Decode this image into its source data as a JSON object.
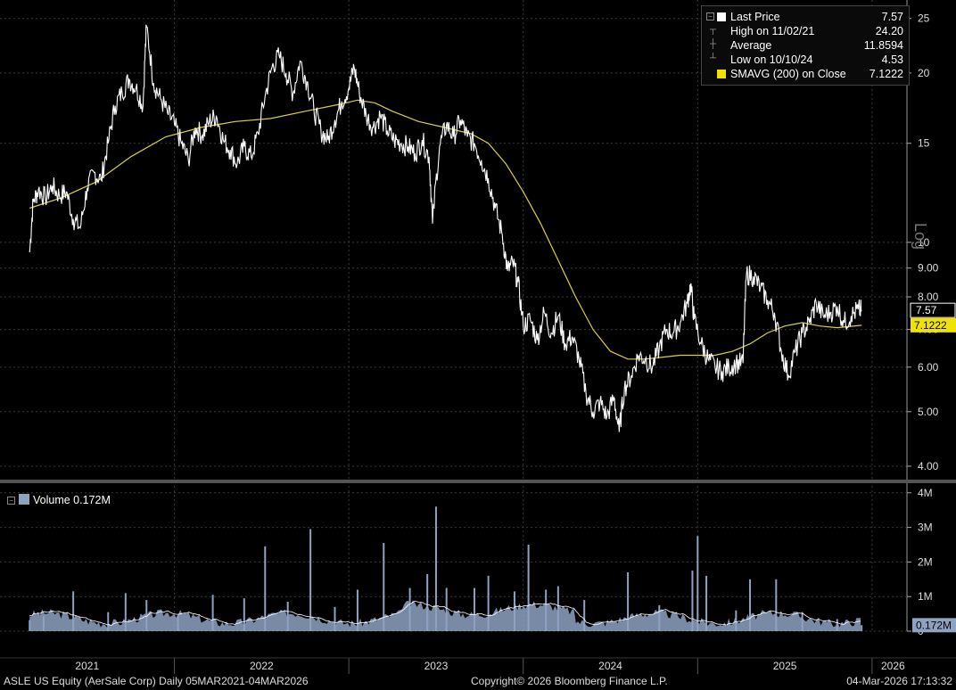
{
  "legend": {
    "last_price_label": "Last Price",
    "last_price_value": "7.57",
    "high_label": "High on 11/02/21",
    "high_value": "24.20",
    "average_label": "Average",
    "average_value": "11.8594",
    "low_label": "Low on 10/10/24",
    "low_value": "4.53",
    "sma_label": "SMAVG (200)  on Close",
    "sma_value": "7.1222"
  },
  "volume_legend": {
    "label": "Volume 0.172M"
  },
  "axis_tag": "Log",
  "price_tags": {
    "last": "7.57",
    "sma": "7.1222",
    "volume": "0.172M"
  },
  "footer": {
    "left": "ASLE US Equity (AerSale Corp) Daily 05MAR2021-04MAR2026",
    "center": "Copyright© 2026 Bloomberg Finance L.P.",
    "right": "04-Mar-2026 17:13:32"
  },
  "colors": {
    "price": "#ffffff",
    "sma": "#d8d23a",
    "volume": "#8ea2c2",
    "volume_avg": "#ffffff",
    "grid": "#3a3a3a"
  },
  "chart_data": [
    {
      "type": "line",
      "scale": "log",
      "ylim": [
        3.8,
        26
      ],
      "xlim": [
        2021.0,
        2026.2
      ],
      "xticks": [
        "2021",
        "2022",
        "2023",
        "2024",
        "2025",
        "2026"
      ],
      "yticks": [
        "4.00",
        "5.00",
        "6.00",
        "7.00",
        "8.00",
        "9.00",
        "10",
        "15",
        "20",
        "25"
      ],
      "grid": true,
      "legend_placement": "top-right",
      "series": [
        {
          "name": "Last Price",
          "points": [
            [
              2021.17,
              9.6
            ],
            [
              2021.19,
              11.8
            ],
            [
              2021.22,
              12.4
            ],
            [
              2021.26,
              12.0
            ],
            [
              2021.3,
              12.6
            ],
            [
              2021.34,
              12.1
            ],
            [
              2021.38,
              12.3
            ],
            [
              2021.42,
              11.0
            ],
            [
              2021.46,
              10.6
            ],
            [
              2021.5,
              12.5
            ],
            [
              2021.54,
              13.3
            ],
            [
              2021.58,
              12.9
            ],
            [
              2021.62,
              15.0
            ],
            [
              2021.66,
              17.5
            ],
            [
              2021.7,
              18.5
            ],
            [
              2021.74,
              19.5
            ],
            [
              2021.78,
              18.8
            ],
            [
              2021.82,
              17.5
            ],
            [
              2021.84,
              24.2
            ],
            [
              2021.88,
              19.2
            ],
            [
              2021.92,
              18.0
            ],
            [
              2021.96,
              17.0
            ],
            [
              2022.0,
              16.2
            ],
            [
              2022.04,
              15.0
            ],
            [
              2022.08,
              14.0
            ],
            [
              2022.12,
              16.0
            ],
            [
              2022.16,
              15.5
            ],
            [
              2022.2,
              16.4
            ],
            [
              2022.24,
              16.8
            ],
            [
              2022.28,
              15.2
            ],
            [
              2022.32,
              14.6
            ],
            [
              2022.36,
              13.8
            ],
            [
              2022.4,
              14.8
            ],
            [
              2022.44,
              14.2
            ],
            [
              2022.48,
              15.6
            ],
            [
              2022.52,
              18.2
            ],
            [
              2022.56,
              20.5
            ],
            [
              2022.6,
              21.5
            ],
            [
              2022.64,
              20.0
            ],
            [
              2022.68,
              18.4
            ],
            [
              2022.72,
              21.0
            ],
            [
              2022.76,
              19.3
            ],
            [
              2022.8,
              17.2
            ],
            [
              2022.84,
              15.8
            ],
            [
              2022.88,
              15.2
            ],
            [
              2022.92,
              16.5
            ],
            [
              2022.96,
              17.8
            ],
            [
              2023.0,
              18.8
            ],
            [
              2023.03,
              20.5
            ],
            [
              2023.06,
              18.5
            ],
            [
              2023.1,
              16.8
            ],
            [
              2023.14,
              16.0
            ],
            [
              2023.18,
              16.8
            ],
            [
              2023.22,
              15.8
            ],
            [
              2023.26,
              15.2
            ],
            [
              2023.3,
              15.0
            ],
            [
              2023.34,
              14.8
            ],
            [
              2023.38,
              14.4
            ],
            [
              2023.42,
              15.2
            ],
            [
              2023.46,
              14.2
            ],
            [
              2023.48,
              10.8
            ],
            [
              2023.52,
              14.8
            ],
            [
              2023.56,
              16.2
            ],
            [
              2023.6,
              15.4
            ],
            [
              2023.64,
              16.5
            ],
            [
              2023.68,
              15.4
            ],
            [
              2023.72,
              15.0
            ],
            [
              2023.76,
              14.0
            ],
            [
              2023.8,
              13.0
            ],
            [
              2023.84,
              11.5
            ],
            [
              2023.88,
              10.3
            ],
            [
              2023.91,
              8.9
            ],
            [
              2023.94,
              9.2
            ],
            [
              2023.97,
              8.5
            ],
            [
              2024.0,
              7.1
            ],
            [
              2024.04,
              7.3
            ],
            [
              2024.08,
              6.7
            ],
            [
              2024.12,
              7.5
            ],
            [
              2024.16,
              6.9
            ],
            [
              2024.2,
              7.4
            ],
            [
              2024.24,
              6.6
            ],
            [
              2024.28,
              6.8
            ],
            [
              2024.32,
              6.2
            ],
            [
              2024.36,
              5.4
            ],
            [
              2024.4,
              5.0
            ],
            [
              2024.44,
              5.2
            ],
            [
              2024.48,
              4.9
            ],
            [
              2024.52,
              5.3
            ],
            [
              2024.55,
              4.6
            ],
            [
              2024.58,
              5.5
            ],
            [
              2024.62,
              5.8
            ],
            [
              2024.66,
              6.3
            ],
            [
              2024.7,
              6.2
            ],
            [
              2024.74,
              6.0
            ],
            [
              2024.78,
              6.5
            ],
            [
              2024.82,
              7.0
            ],
            [
              2024.86,
              6.9
            ],
            [
              2024.9,
              7.2
            ],
            [
              2024.94,
              7.8
            ],
            [
              2024.96,
              8.4
            ],
            [
              2024.98,
              7.3
            ],
            [
              2025.02,
              6.6
            ],
            [
              2025.06,
              6.2
            ],
            [
              2025.1,
              6.0
            ],
            [
              2025.14,
              5.9
            ],
            [
              2025.18,
              6.0
            ],
            [
              2025.22,
              6.1
            ],
            [
              2025.26,
              6.1
            ],
            [
              2025.28,
              8.8
            ],
            [
              2025.32,
              8.7
            ],
            [
              2025.36,
              8.3
            ],
            [
              2025.4,
              7.9
            ],
            [
              2025.44,
              7.5
            ],
            [
              2025.48,
              6.4
            ],
            [
              2025.52,
              5.8
            ],
            [
              2025.56,
              6.4
            ],
            [
              2025.6,
              6.9
            ],
            [
              2025.64,
              7.2
            ],
            [
              2025.68,
              7.8
            ],
            [
              2025.72,
              7.4
            ],
            [
              2025.76,
              7.5
            ],
            [
              2025.8,
              7.7
            ],
            [
              2025.84,
              7.2
            ],
            [
              2025.88,
              7.4
            ],
            [
              2025.92,
              7.6
            ],
            [
              2025.94,
              7.57
            ]
          ]
        },
        {
          "name": "SMAVG (200)  on Close",
          "points": [
            [
              2021.17,
              11.5
            ],
            [
              2021.35,
              12.0
            ],
            [
              2021.55,
              12.8
            ],
            [
              2021.75,
              14.2
            ],
            [
              2021.95,
              15.4
            ],
            [
              2022.15,
              16.0
            ],
            [
              2022.35,
              16.4
            ],
            [
              2022.55,
              16.6
            ],
            [
              2022.75,
              17.1
            ],
            [
              2022.95,
              17.6
            ],
            [
              2023.05,
              17.9
            ],
            [
              2023.15,
              17.7
            ],
            [
              2023.25,
              17.1
            ],
            [
              2023.4,
              16.4
            ],
            [
              2023.55,
              16.0
            ],
            [
              2023.7,
              15.6
            ],
            [
              2023.8,
              15.0
            ],
            [
              2023.9,
              13.8
            ],
            [
              2024.0,
              12.3
            ],
            [
              2024.1,
              10.8
            ],
            [
              2024.2,
              9.3
            ],
            [
              2024.3,
              8.0
            ],
            [
              2024.4,
              7.0
            ],
            [
              2024.5,
              6.4
            ],
            [
              2024.6,
              6.2
            ],
            [
              2024.7,
              6.2
            ],
            [
              2024.8,
              6.25
            ],
            [
              2024.9,
              6.3
            ],
            [
              2025.0,
              6.3
            ],
            [
              2025.1,
              6.3
            ],
            [
              2025.2,
              6.4
            ],
            [
              2025.3,
              6.6
            ],
            [
              2025.4,
              6.9
            ],
            [
              2025.5,
              7.1
            ],
            [
              2025.6,
              7.2
            ],
            [
              2025.7,
              7.1
            ],
            [
              2025.8,
              7.05
            ],
            [
              2025.94,
              7.12
            ]
          ]
        }
      ]
    },
    {
      "type": "bar",
      "ylim": [
        0,
        4.2
      ],
      "yticks": [
        "0",
        "1M",
        "2M",
        "3M",
        "4M"
      ],
      "unit": "M shares",
      "series": [
        {
          "name": "Volume",
          "spikes": [
            [
              2021.17,
              0.32
            ],
            [
              2021.25,
              0.45
            ],
            [
              2021.42,
              1.15
            ],
            [
              2021.62,
              0.55
            ],
            [
              2021.72,
              1.1
            ],
            [
              2021.84,
              0.9
            ],
            [
              2022.02,
              0.45
            ],
            [
              2022.22,
              1.05
            ],
            [
              2022.4,
              0.95
            ],
            [
              2022.52,
              2.45
            ],
            [
              2022.65,
              0.85
            ],
            [
              2022.78,
              2.95
            ],
            [
              2022.92,
              0.7
            ],
            [
              2023.05,
              1.2
            ],
            [
              2023.2,
              2.55
            ],
            [
              2023.35,
              1.25
            ],
            [
              2023.45,
              1.65
            ],
            [
              2023.5,
              3.6
            ],
            [
              2023.56,
              1.25
            ],
            [
              2023.72,
              1.25
            ],
            [
              2023.8,
              1.6
            ],
            [
              2023.95,
              1.15
            ],
            [
              2024.03,
              2.5
            ],
            [
              2024.13,
              1.2
            ],
            [
              2024.2,
              1.3
            ],
            [
              2024.35,
              0.9
            ],
            [
              2024.6,
              1.7
            ],
            [
              2024.78,
              0.75
            ],
            [
              2024.97,
              1.75
            ],
            [
              2025.0,
              2.75
            ],
            [
              2025.05,
              1.6
            ],
            [
              2025.22,
              0.6
            ],
            [
              2025.3,
              1.5
            ],
            [
              2025.45,
              1.5
            ],
            [
              2025.6,
              0.55
            ],
            [
              2025.8,
              0.35
            ],
            [
              2025.94,
              0.172
            ]
          ]
        }
      ]
    }
  ]
}
